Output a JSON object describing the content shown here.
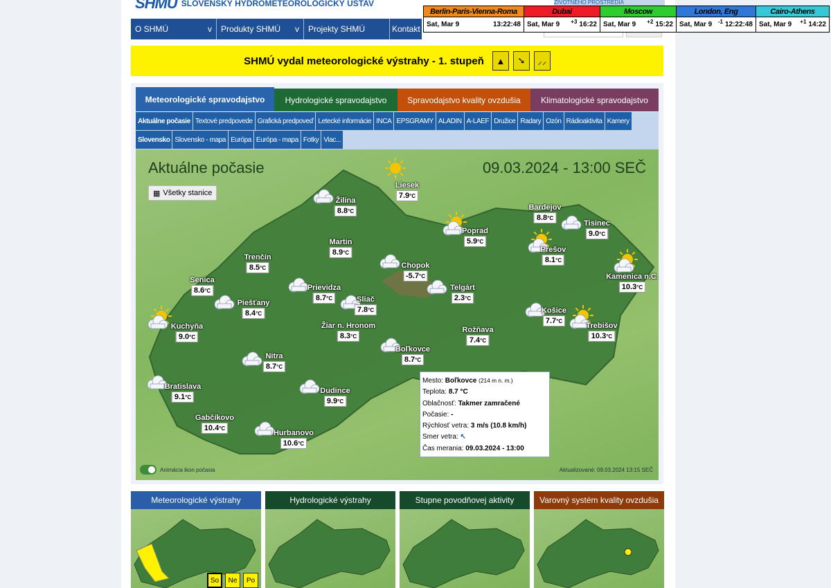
{
  "header": {
    "logo": "SHMÚ",
    "org_name": "SLOVENSKÝ HYDROMETEOROLOGICKÝ ÚSTAV",
    "env_logo": "ŽIVOTNÉHO PROSTREDIA"
  },
  "nav": [
    {
      "label": "O SHMÚ",
      "chevron": "v"
    },
    {
      "label": "Produkty SHMÚ",
      "chevron": "v"
    },
    {
      "label": "Projekty SHMÚ"
    },
    {
      "label": "Kontakt"
    }
  ],
  "clocks": [
    {
      "city": "Berlin-Paris-Vienna-Roma",
      "date": "Sat, Mar 9",
      "offset": "",
      "time": "13:22:48",
      "color": "#f08a1c"
    },
    {
      "city": "Dubai",
      "date": "Sat, Mar 9",
      "offset": "+3",
      "time": "16:22",
      "color": "#ee1c25"
    },
    {
      "city": "Moscow",
      "date": "Sat, Mar 9",
      "offset": "+2",
      "time": "15:22",
      "color": "#2ecc2e"
    },
    {
      "city": "London, Eng",
      "date": "Sat, Mar 9",
      "offset": "-1",
      "time": "12:22:48",
      "color": "#2f78d6"
    },
    {
      "city": "Cairo-Athens",
      "date": "Sat, Mar 9",
      "offset": "+1",
      "time": "14:22",
      "color": "#35c8d8"
    }
  ],
  "banner": {
    "text": "SHMÚ vydal meteorologické výstrahy - 1. stupeň",
    "icons": [
      "avalanche-icon",
      "wind-icon",
      "rain-icon"
    ],
    "color": "#fff200"
  },
  "tabs_main": [
    {
      "label": "Meteorologické spravodajstvo",
      "color": "#2a64ad",
      "active": true
    },
    {
      "label": "Hydrologické spravodajstvo",
      "color": "#1d6a35"
    },
    {
      "label": "Spravodajstvo kvality ovzdušia",
      "color": "#c24f0a"
    },
    {
      "label": "Klimatologické spravodajstvo",
      "color": "#7a3d62"
    }
  ],
  "tabs_sub": [
    "Aktuálne počasie",
    "Textové predpovede",
    "Grafická predpoveď",
    "Letecké informácie",
    "INCA",
    "EPSGRAMY",
    "ALADIN",
    "A-LAEF",
    "Družice",
    "Radary",
    "Ozón",
    "Rádioaktivita",
    "Kamery"
  ],
  "tabs_sub2": [
    "Slovensko",
    "Slovensko - mapa",
    "Európa",
    "Európa - mapa",
    "Fotky",
    "Viac..."
  ],
  "map": {
    "title": "Aktuálne počasie",
    "datetime": "09.03.2024 - 13:00 SEČ",
    "all_stations": "Všetky stanice",
    "unit": "°C",
    "stations": [
      {
        "name": "Žilina",
        "temp": "8.8",
        "icon": "cloud"
      },
      {
        "name": "Liesek",
        "temp": "7.9",
        "icon": "sun"
      },
      {
        "name": "Poprad",
        "temp": "5.9",
        "icon": "sun-cloud"
      },
      {
        "name": "Bardejov",
        "temp": "8.8",
        "icon": "none"
      },
      {
        "name": "Tisinec",
        "temp": "9.0",
        "icon": "cloud"
      },
      {
        "name": "Martin",
        "temp": "8.9",
        "icon": "none"
      },
      {
        "name": "Prešov",
        "temp": "8.1",
        "icon": "sun-cloud"
      },
      {
        "name": "Trenčín",
        "temp": "8.5",
        "icon": "none"
      },
      {
        "name": "Chopok",
        "temp": "-5.7",
        "icon": "cloud"
      },
      {
        "name": "Kamenica n.C.",
        "temp": "10.3",
        "icon": "sun-cloud"
      },
      {
        "name": "Senica",
        "temp": "8.6",
        "icon": "none"
      },
      {
        "name": "Prievidza",
        "temp": "8.7",
        "icon": "cloud"
      },
      {
        "name": "Telgárt",
        "temp": "2.3",
        "icon": "cloud"
      },
      {
        "name": "Piešťany",
        "temp": "8.4",
        "icon": "cloud"
      },
      {
        "name": "Sliač",
        "temp": "7.8",
        "icon": "cloud"
      },
      {
        "name": "Kuchyňa",
        "temp": "9.0",
        "icon": "sun-cloud"
      },
      {
        "name": "Žiar n. Hronom",
        "temp": "8.3",
        "icon": "none"
      },
      {
        "name": "Košice",
        "temp": "7.7",
        "icon": "cloud"
      },
      {
        "name": "Trebišov",
        "temp": "10.3",
        "icon": "sun-cloud"
      },
      {
        "name": "Rožňava",
        "temp": "7.4",
        "icon": "none"
      },
      {
        "name": "Boľkovce",
        "temp": "8.7",
        "icon": "cloud"
      },
      {
        "name": "Nitra",
        "temp": "8.7",
        "icon": "cloud"
      },
      {
        "name": "Bratislava",
        "temp": "9.1",
        "icon": "cloud"
      },
      {
        "name": "Dudince",
        "temp": "9.9",
        "icon": "cloud"
      },
      {
        "name": "Gabčíkovo",
        "temp": "10.4",
        "icon": "none"
      },
      {
        "name": "Hurbanovo",
        "temp": "10.6",
        "icon": "cloud"
      }
    ],
    "tooltip": {
      "city_label": "Mesto:",
      "city": "Boľkovce",
      "altitude": "(214 m n. m.)",
      "temp_label": "Teplota:",
      "temp": "8.7 °C",
      "cloud_label": "Oblačnosť:",
      "cloud": "Takmer zamračené",
      "weather_label": "Počasie:",
      "weather": "-",
      "wind_label": "Rýchlosť vetra:",
      "wind": "3 m/s (10.8 km/h)",
      "dir_label": "Smer vetra:",
      "dir": "↖",
      "time_label": "Čas merania:",
      "time": "09.03.2024 - 13:00"
    },
    "animation_label": "Animácia ikon počasia",
    "updated": "Aktualizované: 09.03.2024 13:15 SEČ"
  },
  "cards": [
    {
      "title": "Meteorologické výstrahy",
      "color": "#2a5ea8",
      "days": [
        "So",
        "Ne",
        "Po"
      ]
    },
    {
      "title": "Hydrologické výstrahy",
      "color": "#154a2a"
    },
    {
      "title": "Stupne povodňovej aktivity",
      "color": "#154a2a"
    },
    {
      "title": "Varovný systém kvality ovzdušia",
      "color": "#8f3a0a"
    }
  ]
}
